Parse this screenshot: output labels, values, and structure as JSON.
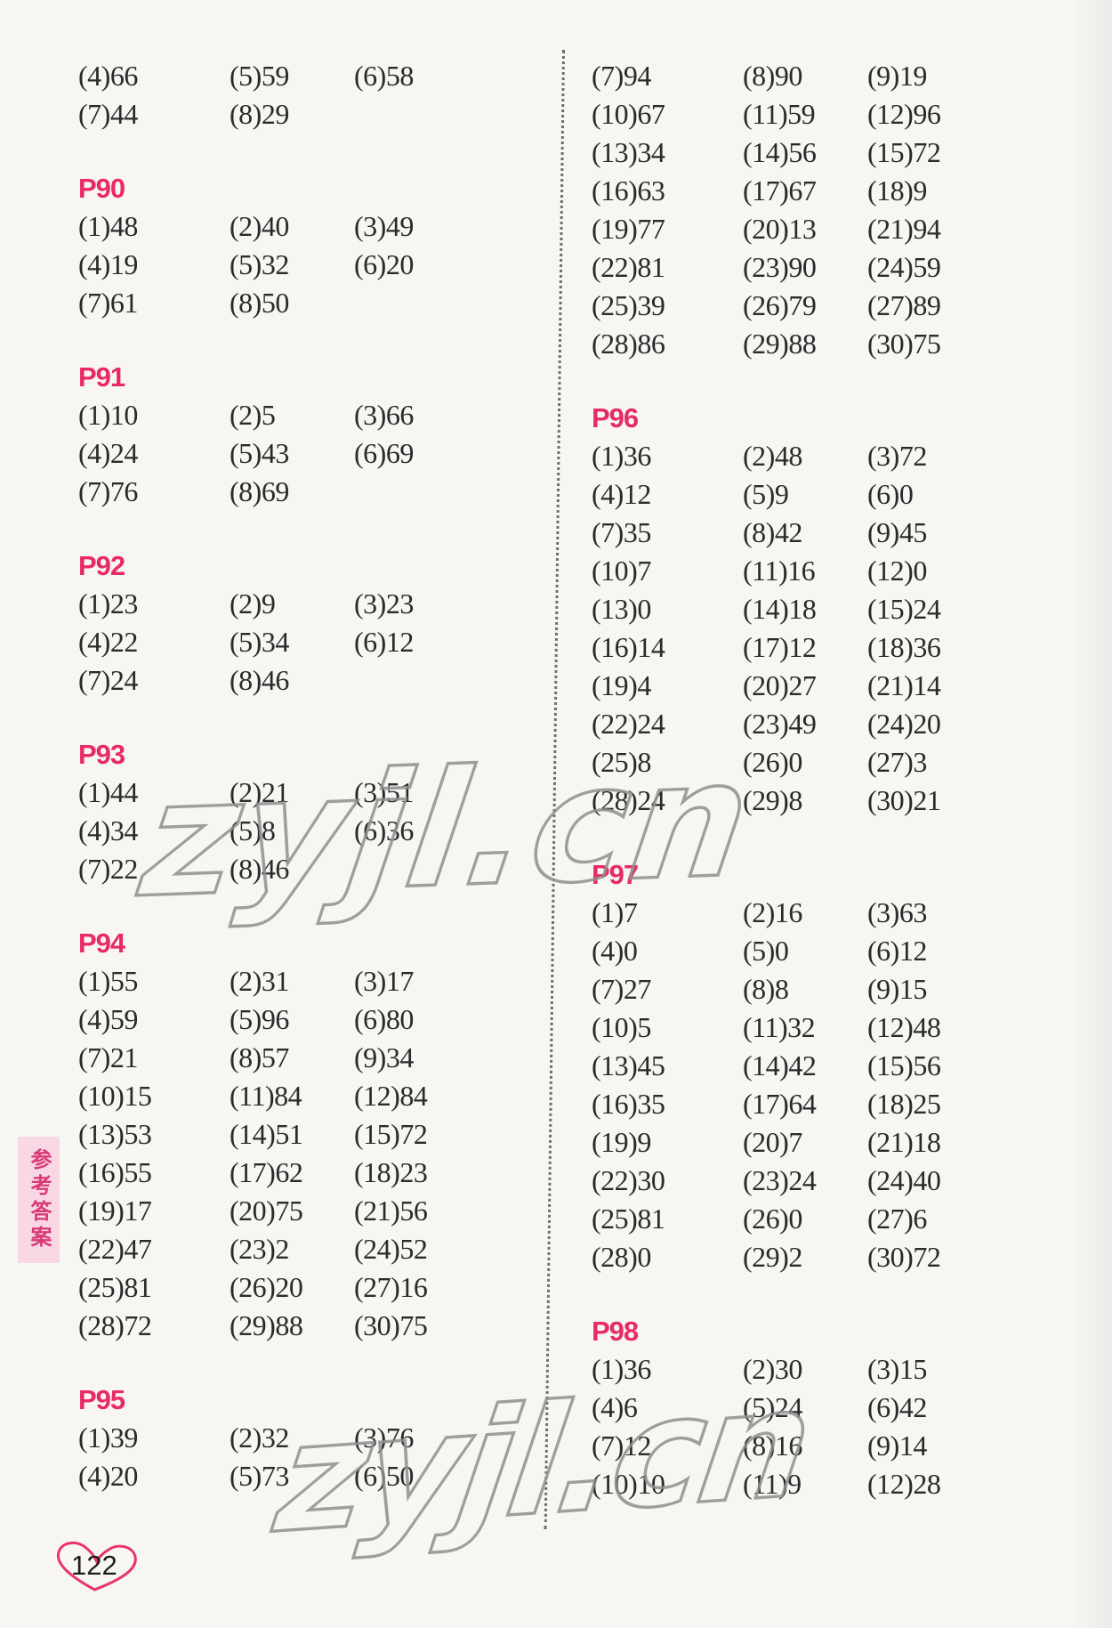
{
  "page": {
    "number": "122",
    "sidebar_label": "参考答案",
    "watermark_text": "zyjl.cn",
    "accent_color": "#e82c63"
  },
  "columns": [
    {
      "sections": [
        {
          "header": "",
          "rows": [
            [
              "(4)66",
              "(5)59",
              "(6)58"
            ],
            [
              "(7)44",
              "(8)29"
            ]
          ]
        },
        {
          "header": "P90",
          "rows": [
            [
              "(1)48",
              "(2)40",
              "(3)49"
            ],
            [
              "(4)19",
              "(5)32",
              "(6)20"
            ],
            [
              "(7)61",
              "(8)50"
            ]
          ]
        },
        {
          "header": "P91",
          "rows": [
            [
              "(1)10",
              "(2)5",
              "(3)66"
            ],
            [
              "(4)24",
              "(5)43",
              "(6)69"
            ],
            [
              "(7)76",
              "(8)69"
            ]
          ]
        },
        {
          "header": "P92",
          "rows": [
            [
              "(1)23",
              "(2)9",
              "(3)23"
            ],
            [
              "(4)22",
              "(5)34",
              "(6)12"
            ],
            [
              "(7)24",
              "(8)46"
            ]
          ]
        },
        {
          "header": "P93",
          "rows": [
            [
              "(1)44",
              "(2)21",
              "(3)51"
            ],
            [
              "(4)34",
              "(5)8",
              "(6)36"
            ],
            [
              "(7)22",
              "(8)46"
            ]
          ]
        },
        {
          "header": "P94",
          "rows": [
            [
              "(1)55",
              "(2)31",
              "(3)17"
            ],
            [
              "(4)59",
              "(5)96",
              "(6)80"
            ],
            [
              "(7)21",
              "(8)57",
              "(9)34"
            ],
            [
              "(10)15",
              "(11)84",
              "(12)84"
            ],
            [
              "(13)53",
              "(14)51",
              "(15)72"
            ],
            [
              "(16)55",
              "(17)62",
              "(18)23"
            ],
            [
              "(19)17",
              "(20)75",
              "(21)56"
            ],
            [
              "(22)47",
              "(23)2",
              "(24)52"
            ],
            [
              "(25)81",
              "(26)20",
              "(27)16"
            ],
            [
              "(28)72",
              "(29)88",
              "(30)75"
            ]
          ]
        },
        {
          "header": "P95",
          "rows": [
            [
              "(1)39",
              "(2)32",
              "(3)76"
            ],
            [
              "(4)20",
              "(5)73",
              "(6)50"
            ]
          ]
        }
      ]
    },
    {
      "sections": [
        {
          "header": "",
          "rows": [
            [
              "(7)94",
              "(8)90",
              "(9)19"
            ],
            [
              "(10)67",
              "(11)59",
              "(12)96"
            ],
            [
              "(13)34",
              "(14)56",
              "(15)72"
            ],
            [
              "(16)63",
              "(17)67",
              "(18)9"
            ],
            [
              "(19)77",
              "(20)13",
              "(21)94"
            ],
            [
              "(22)81",
              "(23)90",
              "(24)59"
            ],
            [
              "(25)39",
              "(26)79",
              "(27)89"
            ],
            [
              "(28)86",
              "(29)88",
              "(30)75"
            ]
          ]
        },
        {
          "header": "P96",
          "rows": [
            [
              "(1)36",
              "(2)48",
              "(3)72"
            ],
            [
              "(4)12",
              "(5)9",
              "(6)0"
            ],
            [
              "(7)35",
              "(8)42",
              "(9)45"
            ],
            [
              "(10)7",
              "(11)16",
              "(12)0"
            ],
            [
              "(13)0",
              "(14)18",
              "(15)24"
            ],
            [
              "(16)14",
              "(17)12",
              "(18)36"
            ],
            [
              "(19)4",
              "(20)27",
              "(21)14"
            ],
            [
              "(22)24",
              "(23)49",
              "(24)20"
            ],
            [
              "(25)8",
              "(26)0",
              "(27)3"
            ],
            [
              "(28)24",
              "(29)8",
              "(30)21"
            ]
          ]
        },
        {
          "header": "P97",
          "rows": [
            [
              "(1)7",
              "(2)16",
              "(3)63"
            ],
            [
              "(4)0",
              "(5)0",
              "(6)12"
            ],
            [
              "(7)27",
              "(8)8",
              "(9)15"
            ],
            [
              "(10)5",
              "(11)32",
              "(12)48"
            ],
            [
              "(13)45",
              "(14)42",
              "(15)56"
            ],
            [
              "(16)35",
              "(17)64",
              "(18)25"
            ],
            [
              "(19)9",
              "(20)7",
              "(21)18"
            ],
            [
              "(22)30",
              "(23)24",
              "(24)40"
            ],
            [
              "(25)81",
              "(26)0",
              "(27)6"
            ],
            [
              "(28)0",
              "(29)2",
              "(30)72"
            ]
          ]
        },
        {
          "header": "P98",
          "rows": [
            [
              "(1)36",
              "(2)30",
              "(3)15"
            ],
            [
              "(4)6",
              "(5)24",
              "(6)42"
            ],
            [
              "(7)12",
              "(8)16",
              "(9)14"
            ],
            [
              "(10)10",
              "(11)9",
              "(12)28"
            ]
          ]
        }
      ]
    }
  ]
}
